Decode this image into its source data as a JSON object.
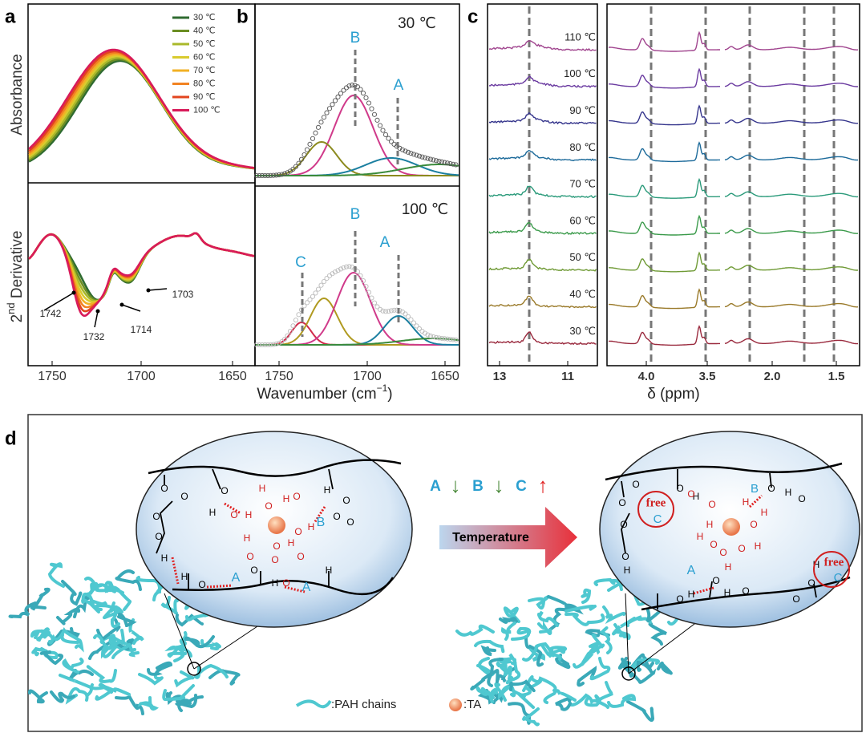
{
  "panels": {
    "a": {
      "label": "a",
      "top_ylabel": "Absorbance",
      "bottom_ylabel": [
        "2",
        "nd",
        " Derivative"
      ],
      "legend": [
        {
          "label": "30 ℃",
          "color": "#2f6b30"
        },
        {
          "label": "40 ℃",
          "color": "#6b8e23"
        },
        {
          "label": "50 ℃",
          "color": "#a9b82a"
        },
        {
          "label": "60 ℃",
          "color": "#d9cb2e"
        },
        {
          "label": "70 ℃",
          "color": "#f2b124"
        },
        {
          "label": "80 ℃",
          "color": "#f28322"
        },
        {
          "label": "90 ℃",
          "color": "#e2451f"
        },
        {
          "label": "100 ℃",
          "color": "#d81b5a"
        }
      ],
      "xticks": [
        "1750",
        "1700",
        "1650"
      ],
      "annotations": [
        "1742",
        "1732",
        "1714",
        "1703"
      ]
    },
    "b": {
      "label": "b",
      "top_title": "30 ℃",
      "bottom_title": "100 ℃",
      "top_peaks": [
        "B",
        "A"
      ],
      "bottom_peaks": [
        "C",
        "B",
        "A"
      ],
      "xticks": [
        "1750",
        "1700",
        "1650"
      ]
    },
    "ab_x_title": [
      "Wavenumber (cm",
      "−1",
      ")"
    ],
    "c": {
      "label": "c",
      "temperatures": [
        {
          "label": "110 ℃",
          "color": "#a0448e"
        },
        {
          "label": "100 ℃",
          "color": "#6a3aa0"
        },
        {
          "label": "90 ℃",
          "color": "#35358c"
        },
        {
          "label": "80 ℃",
          "color": "#1c6a9a"
        },
        {
          "label": "70 ℃",
          "color": "#2a9a7a"
        },
        {
          "label": "60 ℃",
          "color": "#3a9a4a"
        },
        {
          "label": "50 ℃",
          "color": "#6f9a35"
        },
        {
          "label": "40 ℃",
          "color": "#9a7a2a"
        },
        {
          "label": "30 ℃",
          "color": "#9a2a3e"
        }
      ],
      "xticks_left": [
        "13",
        "11"
      ],
      "xticks_right": [
        "4.0",
        "3.5",
        "2.0",
        "1.5"
      ],
      "x_title": "δ (ppm)"
    },
    "d": {
      "label": "d",
      "trend": [
        "A",
        "↓",
        "B",
        "↓",
        "C",
        "↑"
      ],
      "arrow_label": "Temperature",
      "left_labels": [
        "B",
        "A",
        "A"
      ],
      "right_labels": [
        "free",
        "C",
        "B",
        "A",
        "free",
        "C"
      ],
      "atoms_left": [
        "O",
        "O",
        "O",
        "O",
        "H",
        "O",
        "H",
        "O",
        "H",
        "O",
        "H",
        "O",
        "H",
        "H",
        "O",
        "H",
        "O",
        "O",
        "O",
        "H",
        "O",
        "H",
        "O",
        "O",
        "O",
        "H",
        "O",
        "O",
        "H",
        "O",
        "H"
      ],
      "atoms_right": [
        "O",
        "O",
        "O",
        "O",
        "H",
        "O",
        "H",
        "O",
        "H",
        "O",
        "H",
        "H",
        "O",
        "O",
        "H",
        "O",
        "H",
        "O",
        "H",
        "O",
        "H",
        "O",
        "O",
        "H",
        "O",
        "O",
        "H",
        "O",
        "H",
        "O"
      ],
      "legend_chain": ":PAH chains",
      "legend_ta": ":TA"
    }
  }
}
